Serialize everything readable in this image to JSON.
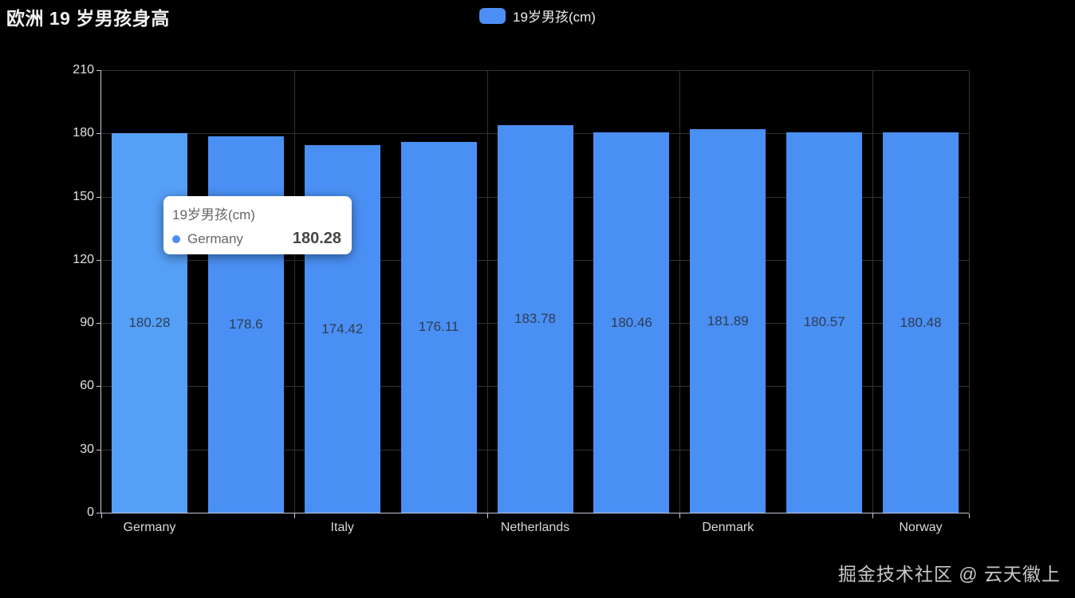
{
  "title": "欧洲 19 岁男孩身高",
  "legend": {
    "label": "19岁男孩(cm)"
  },
  "colors": {
    "bar": "#4a90f4",
    "bar_highlight": "#55a0f7",
    "legend_swatch": "#4c8ef5",
    "tooltip_dot": "#4c8ef5",
    "background": "#000000"
  },
  "chart_data": {
    "type": "bar",
    "title": "欧洲 19 岁男孩身高",
    "series": [
      {
        "name": "19岁男孩(cm)",
        "values": [
          180.28,
          178.6,
          174.42,
          176.11,
          183.78,
          180.46,
          181.89,
          180.57,
          180.48
        ]
      }
    ],
    "bar_value_labels": [
      "180.28",
      "178.6",
      "174.42",
      "176.11",
      "183.78",
      "180.46",
      "181.89",
      "180.57",
      "180.48"
    ],
    "visible_x_labels": [
      "Germany",
      "Italy",
      "Netherlands",
      "Denmark",
      "Norway"
    ],
    "visible_x_label_slots": [
      0,
      2,
      4,
      6,
      8
    ],
    "num_bars": 9,
    "y_ticks": [
      0,
      30,
      60,
      90,
      120,
      150,
      180,
      210
    ],
    "ylim": [
      0,
      210
    ],
    "grid": true,
    "legend_position": "top-center",
    "bar_labels_inside": true,
    "highlighted_bar_index": 0
  },
  "tooltip": {
    "series": "19岁男孩(cm)",
    "name": "Germany",
    "value": "180.28"
  },
  "watermark": "掘金技术社区 @ 云天徽上"
}
